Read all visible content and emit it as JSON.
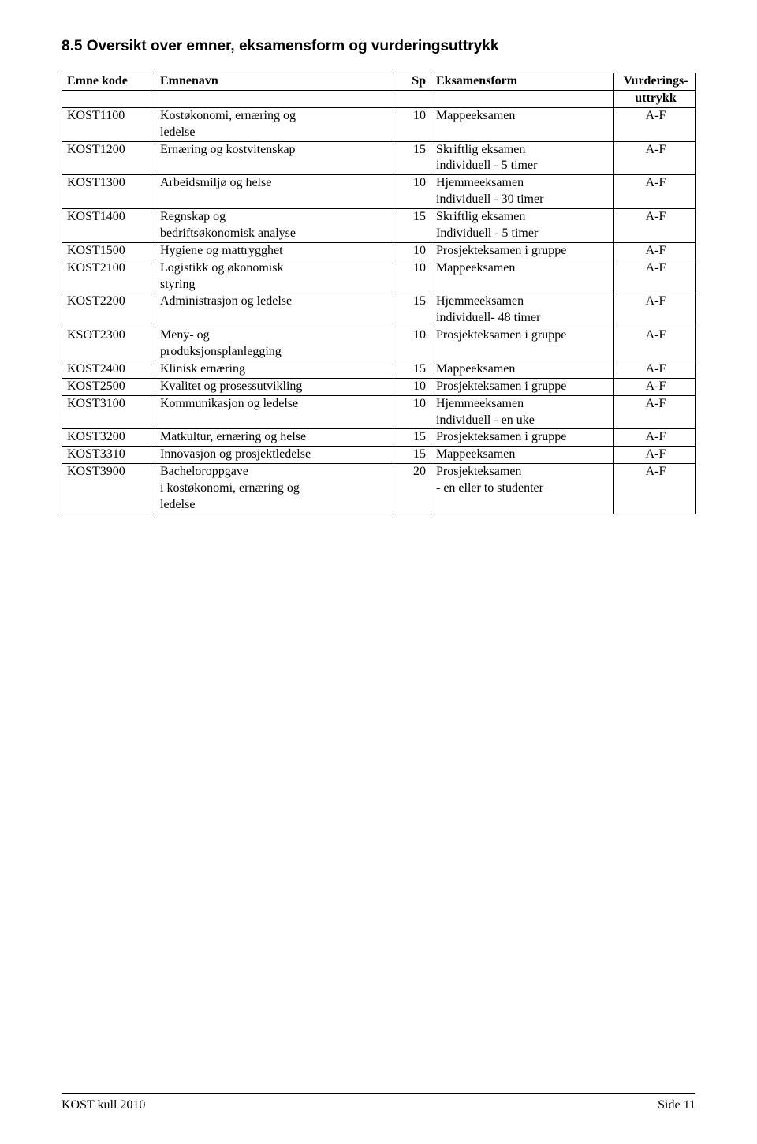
{
  "heading": "8.5 Oversikt over emner, eksamensform og vurderingsuttrykk",
  "header": {
    "code": "Emne kode",
    "name": "Emnenavn",
    "sp": "Sp",
    "exam": "Eksamensform",
    "grade": "Vurderings-",
    "grade2": "uttrykk"
  },
  "rows": [
    {
      "code": "KOST1100",
      "name": "Kostøkonomi, ernæring og",
      "name2": "ledelse",
      "sp": "10",
      "exam": "Mappeeksamen",
      "grade": "A-F",
      "two": true
    },
    {
      "code": "KOST1200",
      "name": "Ernæring og kostvitenskap",
      "sp": "15",
      "exam": "Skriftlig eksamen",
      "exam2": "individuell - 5 timer",
      "grade": "A-F",
      "two": true
    },
    {
      "code": "KOST1300",
      "name": "Arbeidsmiljø og helse",
      "sp": "10",
      "exam": "Hjemmeeksamen",
      "exam2": "individuell - 30 timer",
      "grade": "A-F",
      "two": true
    },
    {
      "code": "KOST1400",
      "name": "Regnskap og",
      "name2": "bedriftsøkonomisk analyse",
      "sp": "15",
      "exam": "Skriftlig eksamen",
      "exam2": "Individuell - 5 timer",
      "grade": "A-F",
      "two": true
    },
    {
      "code": "KOST1500",
      "name": "Hygiene og mattrygghet",
      "sp": "10",
      "exam": "Prosjekteksamen i gruppe",
      "grade": "A-F"
    },
    {
      "code": "KOST2100",
      "name": "Logistikk og økonomisk",
      "name2": "styring",
      "sp": "10",
      "exam": "Mappeeksamen",
      "grade": "A-F",
      "two": true
    },
    {
      "code": "KOST2200",
      "name": "Administrasjon og ledelse",
      "sp": "15",
      "exam": "Hjemmeeksamen",
      "exam2": "individuell- 48 timer",
      "grade": "A-F",
      "two": true
    },
    {
      "code": "KSOT2300",
      "name": "Meny- og",
      "name2": "produksjonsplanlegging",
      "sp": "10",
      "exam": "Prosjekteksamen i gruppe",
      "grade": "A-F",
      "two": true
    },
    {
      "code": "KOST2400",
      "name": "Klinisk ernæring",
      "sp": "15",
      "exam": "Mappeeksamen",
      "grade": "A-F"
    },
    {
      "code": "KOST2500",
      "name": "Kvalitet og prosessutvikling",
      "sp": "10",
      "exam": "Prosjekteksamen i gruppe",
      "grade": "A-F"
    },
    {
      "code": "KOST3100",
      "name": "Kommunikasjon og ledelse",
      "sp": "10",
      "exam": "Hjemmeeksamen",
      "exam2": "individuell - en uke",
      "grade": "A-F",
      "two": true
    },
    {
      "code": "KOST3200",
      "name": "Matkultur, ernæring og helse",
      "sp": "15",
      "exam": "Prosjekteksamen i gruppe",
      "grade": "A-F"
    },
    {
      "code": "KOST3310",
      "name": "Innovasjon og prosjektledelse",
      "sp": "15",
      "exam": "Mappeeksamen",
      "grade": "A-F"
    },
    {
      "code": "KOST3900",
      "name": "Bacheloroppgave",
      "name2": "i kostøkonomi, ernæring og",
      "name3": "ledelse",
      "sp": "20",
      "exam": "Prosjekteksamen",
      "exam2": "- en eller to studenter",
      "grade": "A-F",
      "three": true
    }
  ],
  "footer": {
    "left": "KOST kull 2010",
    "right": "Side 11"
  },
  "colors": {
    "border": "#000000",
    "bg": "#ffffff",
    "text": "#000000"
  }
}
